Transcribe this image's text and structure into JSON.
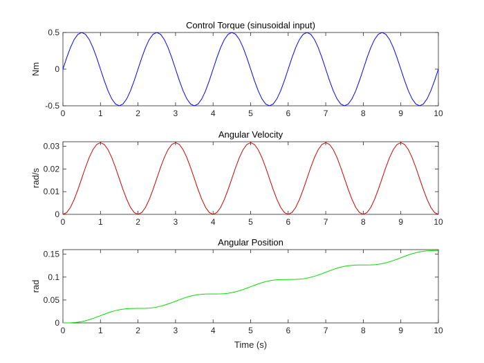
{
  "chart_data": [
    {
      "type": "line",
      "title": "Control Torque (sinusoidal input)",
      "xlabel": "",
      "ylabel": "Nm",
      "xlim": [
        0,
        10
      ],
      "ylim": [
        -0.5,
        0.5
      ],
      "xticks": [
        "0",
        "1",
        "2",
        "3",
        "4",
        "5",
        "6",
        "7",
        "8",
        "9",
        "10"
      ],
      "yticks": [
        "-0.5",
        "0",
        "0.5"
      ],
      "grid": false,
      "series": [
        {
          "color": "#0000ff",
          "x": [
            0,
            0.1,
            0.2,
            0.3,
            0.4,
            0.5,
            0.6,
            0.7,
            0.8,
            0.9,
            1,
            1.1,
            1.2,
            1.3,
            1.4,
            1.5,
            1.6,
            1.7,
            1.8,
            1.9,
            2,
            2.1,
            2.2,
            2.3,
            2.4,
            2.5,
            2.6,
            2.7,
            2.8,
            2.9,
            3,
            3.1,
            3.2,
            3.3,
            3.4,
            3.5,
            3.6,
            3.7,
            3.8,
            3.9,
            4,
            4.1,
            4.2,
            4.3,
            4.4,
            4.5,
            4.6,
            4.7,
            4.8,
            4.9,
            5,
            5.1,
            5.2,
            5.3,
            5.4,
            5.5,
            5.6,
            5.7,
            5.8,
            5.9,
            6,
            6.1,
            6.2,
            6.3,
            6.4,
            6.5,
            6.6,
            6.7,
            6.8,
            6.9,
            7,
            7.1,
            7.2,
            7.3,
            7.4,
            7.5,
            7.6,
            7.7,
            7.8,
            7.9,
            8,
            8.1,
            8.2,
            8.3,
            8.4,
            8.5,
            8.6,
            8.7,
            8.8,
            8.9,
            9,
            9.1,
            9.2,
            9.3,
            9.4,
            9.5,
            9.6,
            9.7,
            9.8,
            9.9,
            10
          ],
          "y": [
            0,
            0.155,
            0.294,
            0.405,
            0.476,
            0.5,
            0.476,
            0.405,
            0.294,
            0.155,
            0,
            -0.155,
            -0.294,
            -0.405,
            -0.476,
            -0.5,
            -0.476,
            -0.405,
            -0.294,
            -0.155,
            0,
            0.155,
            0.294,
            0.405,
            0.476,
            0.5,
            0.476,
            0.405,
            0.294,
            0.155,
            0,
            -0.155,
            -0.294,
            -0.405,
            -0.476,
            -0.5,
            -0.476,
            -0.405,
            -0.294,
            -0.155,
            0,
            0.155,
            0.294,
            0.405,
            0.476,
            0.5,
            0.476,
            0.405,
            0.294,
            0.155,
            0,
            -0.155,
            -0.294,
            -0.405,
            -0.476,
            -0.5,
            -0.476,
            -0.405,
            -0.294,
            -0.155,
            0,
            0.155,
            0.294,
            0.405,
            0.476,
            0.5,
            0.476,
            0.405,
            0.294,
            0.155,
            0,
            -0.155,
            -0.294,
            -0.405,
            -0.476,
            -0.5,
            -0.476,
            -0.405,
            -0.294,
            -0.155,
            0,
            0.155,
            0.294,
            0.405,
            0.476,
            0.5,
            0.476,
            0.405,
            0.294,
            0.155,
            0,
            -0.155,
            -0.294,
            -0.405,
            -0.476,
            -0.5,
            -0.476,
            -0.405,
            -0.294,
            -0.155,
            0
          ]
        }
      ]
    },
    {
      "type": "line",
      "title": "Angular Velocity",
      "xlabel": "",
      "ylabel": "rad/s",
      "xlim": [
        0,
        10
      ],
      "ylim": [
        0,
        0.032
      ],
      "xticks": [
        "0",
        "1",
        "2",
        "3",
        "4",
        "5",
        "6",
        "7",
        "8",
        "9",
        "10"
      ],
      "yticks": [
        "0",
        "0.01",
        "0.02",
        "0.03"
      ],
      "grid": false,
      "series": [
        {
          "color": "#cc0000",
          "x": [
            0,
            0.1,
            0.2,
            0.3,
            0.4,
            0.5,
            0.6,
            0.7,
            0.8,
            0.9,
            1,
            1.1,
            1.2,
            1.3,
            1.4,
            1.5,
            1.6,
            1.7,
            1.8,
            1.9,
            2,
            2.1,
            2.2,
            2.3,
            2.4,
            2.5,
            2.6,
            2.7,
            2.8,
            2.9,
            3,
            3.1,
            3.2,
            3.3,
            3.4,
            3.5,
            3.6,
            3.7,
            3.8,
            3.9,
            4,
            4.1,
            4.2,
            4.3,
            4.4,
            4.5,
            4.6,
            4.7,
            4.8,
            4.9,
            5,
            5.1,
            5.2,
            5.3,
            5.4,
            5.5,
            5.6,
            5.7,
            5.8,
            5.9,
            6,
            6.1,
            6.2,
            6.3,
            6.4,
            6.5,
            6.6,
            6.7,
            6.8,
            6.9,
            7,
            7.1,
            7.2,
            7.3,
            7.4,
            7.5,
            7.6,
            7.7,
            7.8,
            7.9,
            8,
            8.1,
            8.2,
            8.3,
            8.4,
            8.5,
            8.6,
            8.7,
            8.8,
            8.9,
            9,
            9.1,
            9.2,
            9.3,
            9.4,
            9.5,
            9.6,
            9.7,
            9.8,
            9.9,
            10
          ],
          "y": [
            0,
            0.00078,
            0.00305,
            0.00656,
            0.01095,
            0.0158,
            0.02065,
            0.02504,
            0.02855,
            0.03082,
            0.0316,
            0.03082,
            0.02855,
            0.02504,
            0.02065,
            0.0158,
            0.01095,
            0.00656,
            0.00305,
            0.00078,
            0,
            0.00078,
            0.00305,
            0.00656,
            0.01095,
            0.0158,
            0.02065,
            0.02504,
            0.02855,
            0.03082,
            0.0316,
            0.03082,
            0.02855,
            0.02504,
            0.02065,
            0.0158,
            0.01095,
            0.00656,
            0.00305,
            0.00078,
            0,
            0.00078,
            0.00305,
            0.00656,
            0.01095,
            0.0158,
            0.02065,
            0.02504,
            0.02855,
            0.03082,
            0.0316,
            0.03082,
            0.02855,
            0.02504,
            0.02065,
            0.0158,
            0.01095,
            0.00656,
            0.00305,
            0.00078,
            0,
            0.00078,
            0.00305,
            0.00656,
            0.01095,
            0.0158,
            0.02065,
            0.02504,
            0.02855,
            0.03082,
            0.0316,
            0.03082,
            0.02855,
            0.02504,
            0.02065,
            0.0158,
            0.01095,
            0.00656,
            0.00305,
            0.00078,
            0,
            0.00078,
            0.00305,
            0.00656,
            0.01095,
            0.0158,
            0.02065,
            0.02504,
            0.02855,
            0.03082,
            0.0316,
            0.03082,
            0.02855,
            0.02504,
            0.02065,
            0.0158,
            0.01095,
            0.00656,
            0.00305,
            0.00078,
            0
          ]
        }
      ]
    },
    {
      "type": "line",
      "title": "Angular Position",
      "xlabel": "Time (s)",
      "ylabel": "rad",
      "xlim": [
        0,
        10
      ],
      "ylim": [
        0,
        0.16
      ],
      "xticks": [
        "0",
        "1",
        "2",
        "3",
        "4",
        "5",
        "6",
        "7",
        "8",
        "9",
        "10"
      ],
      "yticks": [
        "0",
        "0.05",
        "0.1",
        "0.15"
      ],
      "grid": false,
      "series": [
        {
          "color": "#00dd00",
          "x": [
            0,
            0.1,
            0.2,
            0.3,
            0.4,
            0.5,
            0.6,
            0.7,
            0.8,
            0.9,
            1,
            1.1,
            1.2,
            1.3,
            1.4,
            1.5,
            1.6,
            1.7,
            1.8,
            1.9,
            2,
            2.1,
            2.2,
            2.3,
            2.4,
            2.5,
            2.6,
            2.7,
            2.8,
            2.9,
            3,
            3.1,
            3.2,
            3.3,
            3.4,
            3.5,
            3.6,
            3.7,
            3.8,
            3.9,
            4,
            4.1,
            4.2,
            4.3,
            4.4,
            4.5,
            4.6,
            4.7,
            4.8,
            4.9,
            5,
            5.1,
            5.2,
            5.3,
            5.4,
            5.5,
            5.6,
            5.7,
            5.8,
            5.9,
            6,
            6.1,
            6.2,
            6.3,
            6.4,
            6.5,
            6.6,
            6.7,
            6.8,
            6.9,
            7,
            7.1,
            7.2,
            7.3,
            7.4,
            7.5,
            7.6,
            7.7,
            7.8,
            7.9,
            8,
            8.1,
            8.2,
            8.3,
            8.4,
            8.5,
            8.6,
            8.7,
            8.8,
            8.9,
            9,
            9.1,
            9.2,
            9.3,
            9.4,
            9.5,
            9.6,
            9.7,
            9.8,
            9.9,
            10
          ],
          "y": [
            0,
            3e-05,
            0.0002,
            0.00067,
            0.00152,
            0.00287,
            0.00472,
            0.00702,
            0.00971,
            0.01269,
            0.0158,
            0.01891,
            0.02189,
            0.02458,
            0.02688,
            0.02873,
            0.03008,
            0.03093,
            0.0314,
            0.03157,
            0.0316,
            0.03163,
            0.0318,
            0.03227,
            0.03312,
            0.03447,
            0.03632,
            0.03862,
            0.04131,
            0.04429,
            0.0474,
            0.05051,
            0.05349,
            0.05618,
            0.05848,
            0.06033,
            0.06168,
            0.06253,
            0.063,
            0.06317,
            0.0632,
            0.06323,
            0.0634,
            0.06387,
            0.06472,
            0.06607,
            0.06792,
            0.07022,
            0.07291,
            0.07589,
            0.079,
            0.08211,
            0.08509,
            0.08778,
            0.09008,
            0.09193,
            0.09328,
            0.09413,
            0.0946,
            0.09477,
            0.0948,
            0.09483,
            0.095,
            0.09547,
            0.09632,
            0.09767,
            0.09952,
            0.10182,
            0.10451,
            0.10749,
            0.1106,
            0.11371,
            0.11669,
            0.11938,
            0.12168,
            0.12353,
            0.12488,
            0.12573,
            0.1262,
            0.12637,
            0.1264,
            0.12643,
            0.1266,
            0.12707,
            0.12792,
            0.12927,
            0.13112,
            0.13342,
            0.13611,
            0.13909,
            0.1422,
            0.14531,
            0.14829,
            0.15098,
            0.15328,
            0.15513,
            0.15648,
            0.15733,
            0.1578,
            0.15797,
            0.158
          ]
        }
      ]
    }
  ]
}
